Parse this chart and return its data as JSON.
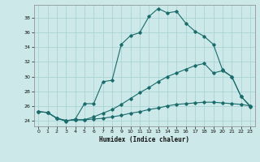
{
  "xlabel": "Humidex (Indice chaleur)",
  "ylabel": "",
  "bg_color": "#cce8e8",
  "line_color": "#1a6b6b",
  "grid_color": "#aad4d4",
  "xlim": [
    -0.5,
    23.5
  ],
  "ylim": [
    23.2,
    39.8
  ],
  "yticks": [
    24,
    26,
    28,
    30,
    32,
    34,
    36,
    38
  ],
  "xticks": [
    0,
    1,
    2,
    3,
    4,
    5,
    6,
    7,
    8,
    9,
    10,
    11,
    12,
    13,
    14,
    15,
    16,
    17,
    18,
    19,
    20,
    21,
    22,
    23
  ],
  "line1_x": [
    0,
    1,
    2,
    3,
    4,
    5,
    6,
    7,
    8,
    9,
    10,
    11,
    12,
    13,
    14,
    15,
    16,
    17,
    18,
    19,
    20,
    21,
    22,
    23
  ],
  "line1_y": [
    25.2,
    25.1,
    24.3,
    23.9,
    24.2,
    26.3,
    26.3,
    29.3,
    29.5,
    34.4,
    35.6,
    36.0,
    38.2,
    39.3,
    38.7,
    38.9,
    37.3,
    36.2,
    35.5,
    34.4,
    30.9,
    30.0,
    27.3,
    25.9
  ],
  "line2_x": [
    0,
    1,
    2,
    3,
    4,
    5,
    6,
    7,
    8,
    9,
    10,
    11,
    12,
    13,
    14,
    15,
    16,
    17,
    18,
    19,
    20,
    21,
    22,
    23
  ],
  "line2_y": [
    25.2,
    25.1,
    24.3,
    24.0,
    24.1,
    24.1,
    24.5,
    25.0,
    25.5,
    26.2,
    27.0,
    27.8,
    28.5,
    29.3,
    30.0,
    30.5,
    31.0,
    31.5,
    31.8,
    30.5,
    30.8,
    30.0,
    27.3,
    26.0
  ],
  "line3_x": [
    0,
    1,
    2,
    3,
    4,
    5,
    6,
    7,
    8,
    9,
    10,
    11,
    12,
    13,
    14,
    15,
    16,
    17,
    18,
    19,
    20,
    21,
    22,
    23
  ],
  "line3_y": [
    25.2,
    25.1,
    24.3,
    24.0,
    24.1,
    24.1,
    24.2,
    24.3,
    24.5,
    24.7,
    25.0,
    25.2,
    25.5,
    25.7,
    26.0,
    26.2,
    26.3,
    26.4,
    26.5,
    26.5,
    26.4,
    26.3,
    26.2,
    26.0
  ]
}
